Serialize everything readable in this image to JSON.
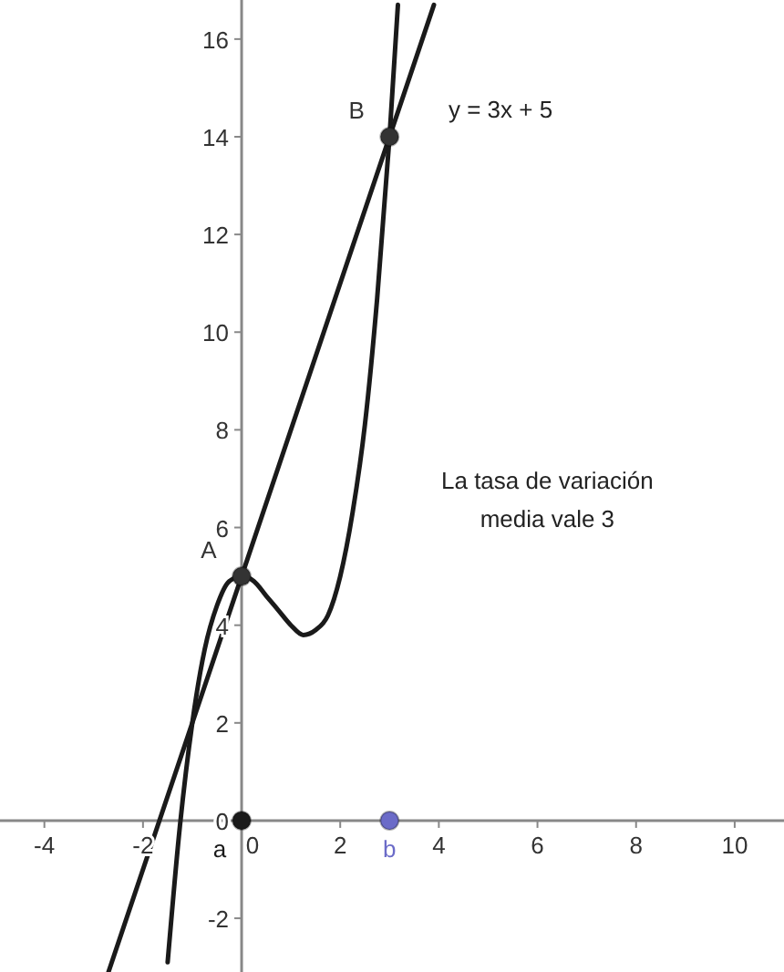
{
  "chart_data": {
    "type": "line",
    "xlim": [
      -4.9,
      11
    ],
    "ylim": [
      -3.1,
      16.8
    ],
    "xticks": [
      -4,
      -2,
      0,
      2,
      4,
      6,
      8,
      10
    ],
    "yticks": [
      -2,
      0,
      2,
      4,
      6,
      8,
      10,
      12,
      14,
      16
    ],
    "grid": false,
    "marker": "none",
    "line_style": "solid",
    "annotations": [
      "La tasa de variación media vale 3"
    ],
    "series": [
      {
        "color": "#1a1a1a",
        "x": [
          -1.5,
          -1.25,
          -1,
          -0.75,
          -0.5,
          -0.25,
          0,
          0.25,
          0.5,
          0.75,
          1,
          1.25,
          1.5,
          1.75,
          2,
          2.25,
          2.5,
          2.75,
          3,
          3.17
        ],
        "values": [
          -2.9,
          -0.1,
          2,
          3.5,
          4.4,
          4.9,
          5,
          4.9,
          4.6,
          4.3,
          4,
          3.8,
          3.9,
          4.2,
          5,
          6.3,
          8.1,
          10.7,
          14,
          16.7
        ]
      },
      {
        "name": "y = 3x + 5",
        "color": "#1a1a1a",
        "x": [
          -2.7,
          3.9
        ],
        "values": [
          -3.1,
          16.7
        ]
      },
      {
        "type": "scatter",
        "name": "A",
        "color": "#333333",
        "marker": "circle",
        "x": [
          0
        ],
        "values": [
          5
        ]
      },
      {
        "type": "scatter",
        "name": "B",
        "color": "#333333",
        "marker": "circle",
        "x": [
          3
        ],
        "values": [
          14
        ]
      },
      {
        "type": "scatter",
        "name": "a",
        "color": "#1a1a1a",
        "marker": "circle",
        "x": [
          0
        ],
        "values": [
          0
        ]
      },
      {
        "type": "scatter",
        "name": "b",
        "color": "#6b6bc8",
        "marker": "circle",
        "x": [
          3
        ],
        "values": [
          0
        ]
      }
    ]
  }
}
